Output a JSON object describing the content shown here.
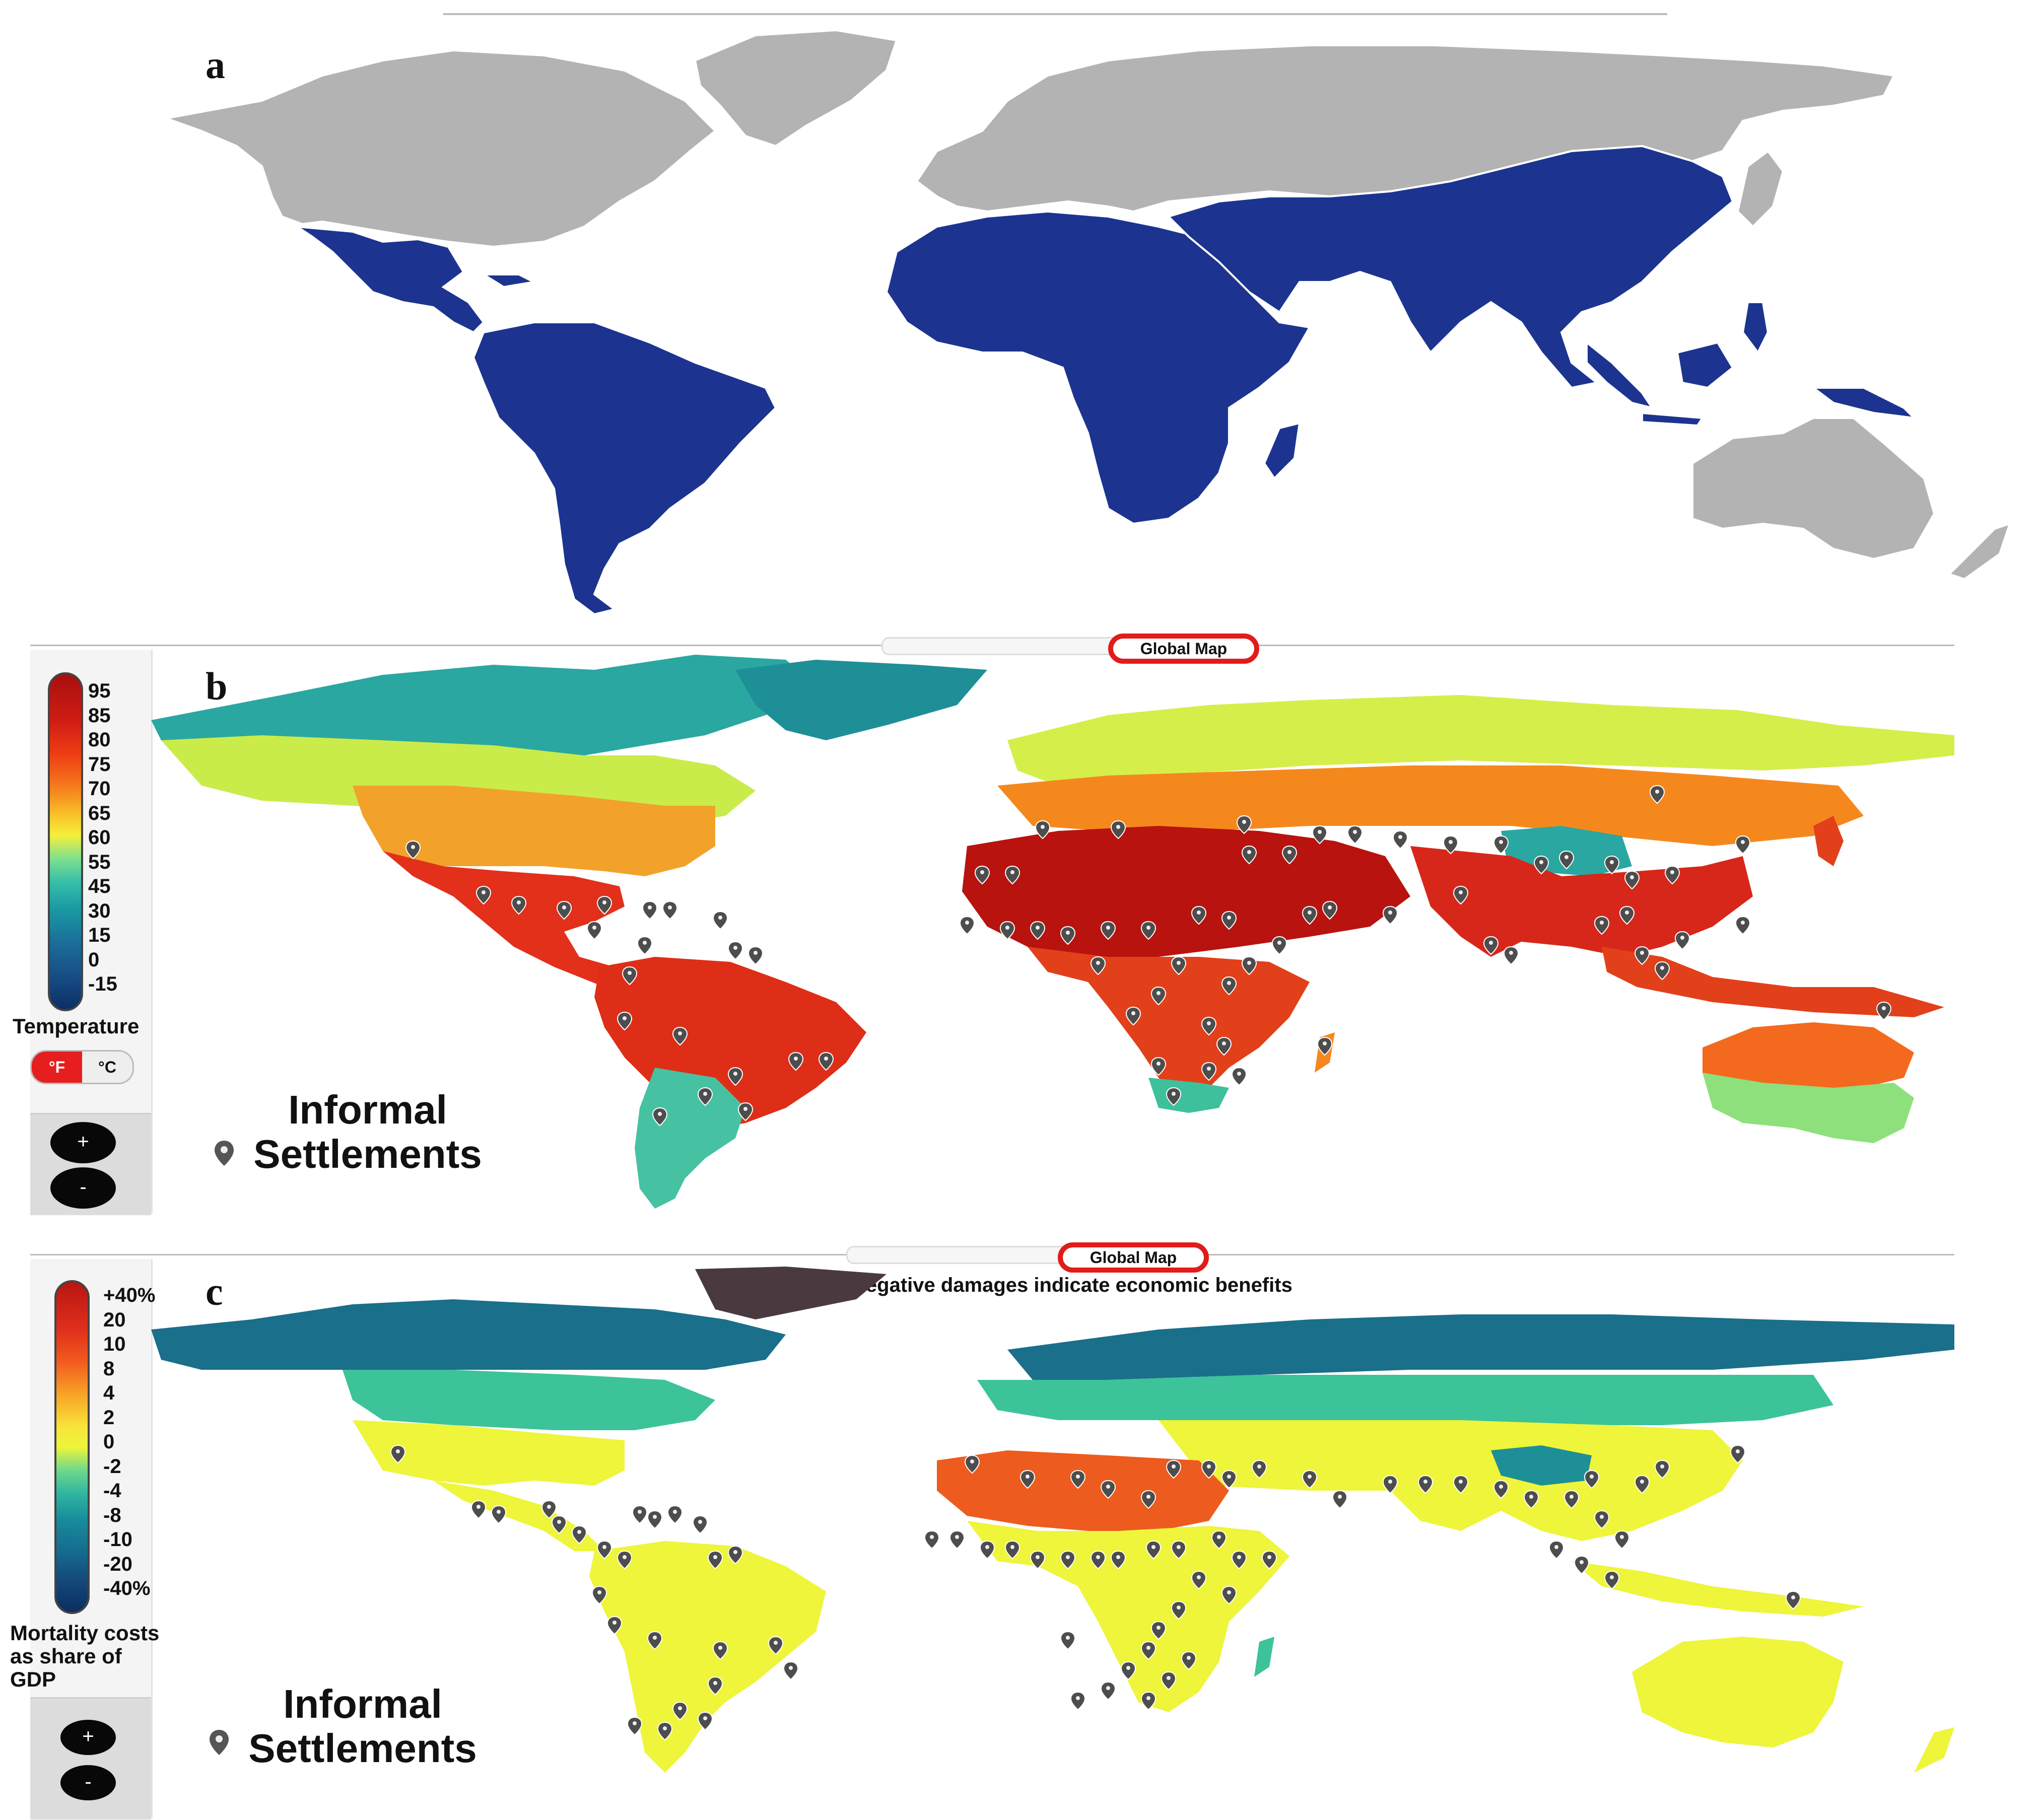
{
  "panels": {
    "a": {
      "letter": "a",
      "colors": {
        "highlight": "#1c3490",
        "other": "#b3b3b3",
        "border": "#ffffff"
      }
    },
    "b": {
      "letter": "b",
      "global_map_label": "Global Map",
      "legend": {
        "ticks": [
          "95",
          "85",
          "80",
          "75",
          "70",
          "65",
          "60",
          "55",
          "45",
          "30",
          "15",
          "0",
          "-15"
        ],
        "colors": [
          "#a80f0f",
          "#c71a13",
          "#e02a16",
          "#f24b14",
          "#f6841b",
          "#f8c22a",
          "#f6ef3a",
          "#7fe08e",
          "#37bfa9",
          "#1a9aa3",
          "#1a6e99",
          "#174d86",
          "#0d2e66"
        ],
        "title": "Temperature",
        "unit_f": "°F",
        "unit_c": "°C"
      },
      "zoom_in": "+",
      "zoom_out": "-",
      "marker_label": "Informal Settlements",
      "marker_icon": "map-pin-icon"
    },
    "c": {
      "letter": "c",
      "global_map_label": "Global Map",
      "note": "Negative damages indicate economic benefits",
      "legend": {
        "ticks": [
          "+40%",
          "20",
          "10",
          "8",
          "4",
          "2",
          "0",
          "-2",
          "-4",
          "-8",
          "-10",
          "-20",
          "-40%"
        ],
        "colors": [
          "#b81612",
          "#d8261b",
          "#ef4a1c",
          "#f47a1f",
          "#f8b429",
          "#f8e43a",
          "#eef53a",
          "#6fd98b",
          "#30b6a0",
          "#188c9b",
          "#156a8e",
          "#144b7c",
          "#0b2d60"
        ],
        "title": "Mortality costs as share of GDP"
      },
      "zoom_in": "+",
      "zoom_out": "-",
      "marker_label": "Informal Settlements",
      "marker_icon": "map-pin-icon"
    }
  }
}
